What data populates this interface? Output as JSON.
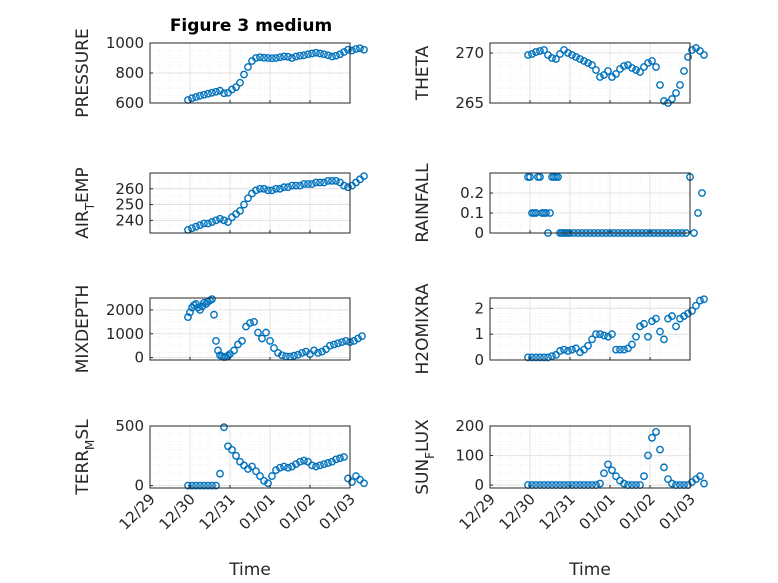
{
  "title": "Figure 3 medium",
  "xlabel": "Time",
  "x_ticks": [
    "12/29",
    "12/30",
    "12/31",
    "01/01",
    "01/02",
    "01/03"
  ],
  "chart_data": [
    {
      "type": "scatter",
      "ylabel_parts": [
        "PRESSURE"
      ],
      "ylim": [
        600,
        1000
      ],
      "y_ticks": [
        "600",
        "800",
        "1000"
      ],
      "y_tick_values": [
        600,
        800,
        1000
      ],
      "x": [
        0.95,
        1.05,
        1.15,
        1.25,
        1.35,
        1.45,
        1.55,
        1.65,
        1.75,
        1.85,
        1.95,
        2.05,
        2.15,
        2.25,
        2.35,
        2.45,
        2.55,
        2.65,
        2.75,
        2.85,
        2.95,
        3.05,
        3.15,
        3.25,
        3.35,
        3.45,
        3.55,
        3.65,
        3.75,
        3.85,
        3.95,
        4.05,
        4.15,
        4.25,
        4.35,
        4.45,
        4.55,
        4.65,
        4.75,
        4.85,
        4.95,
        5.05,
        5.15,
        5.25,
        5.35
      ],
      "y": [
        620,
        632,
        640,
        648,
        655,
        662,
        668,
        675,
        682,
        665,
        668,
        690,
        705,
        735,
        790,
        840,
        880,
        900,
        905,
        902,
        900,
        898,
        900,
        905,
        910,
        908,
        900,
        910,
        915,
        918,
        925,
        930,
        935,
        930,
        925,
        918,
        910,
        915,
        925,
        940,
        955,
        950,
        960,
        965,
        955
      ]
    },
    {
      "type": "scatter",
      "ylabel_parts": [
        "THETA"
      ],
      "ylim": [
        265,
        271
      ],
      "y_ticks": [
        "265",
        "270"
      ],
      "y_tick_values": [
        265,
        270
      ],
      "x": [
        0.95,
        1.05,
        1.15,
        1.25,
        1.35,
        1.45,
        1.55,
        1.65,
        1.75,
        1.85,
        1.95,
        2.05,
        2.15,
        2.25,
        2.35,
        2.45,
        2.55,
        2.65,
        2.75,
        2.85,
        2.95,
        3.05,
        3.15,
        3.25,
        3.35,
        3.45,
        3.55,
        3.65,
        3.75,
        3.85,
        3.95,
        4.05,
        4.15,
        4.25,
        4.35,
        4.45,
        4.55,
        4.65,
        4.75,
        4.85,
        4.95,
        5.05,
        5.15,
        5.25,
        5.35
      ],
      "y": [
        269.8,
        269.9,
        270.1,
        270.2,
        270.3,
        269.8,
        269.5,
        269.4,
        269.9,
        270.3,
        270.0,
        269.8,
        269.6,
        269.4,
        269.2,
        269.0,
        268.8,
        268.3,
        267.6,
        267.8,
        268.2,
        267.6,
        267.9,
        268.4,
        268.7,
        268.8,
        268.5,
        268.3,
        268.1,
        268.6,
        269.0,
        269.2,
        268.6,
        266.8,
        265.2,
        265.0,
        265.4,
        266.0,
        266.8,
        268.2,
        269.6,
        270.3,
        270.5,
        270.2,
        269.8
      ]
    },
    {
      "type": "scatter",
      "ylabel_parts": [
        "AIR",
        "T",
        "EMP"
      ],
      "ylim": [
        232,
        270
      ],
      "y_ticks": [
        "240",
        "250",
        "260"
      ],
      "y_tick_values": [
        240,
        250,
        260
      ],
      "x": [
        0.95,
        1.05,
        1.15,
        1.25,
        1.35,
        1.45,
        1.55,
        1.65,
        1.75,
        1.85,
        1.95,
        2.05,
        2.15,
        2.25,
        2.35,
        2.45,
        2.55,
        2.65,
        2.75,
        2.85,
        2.95,
        3.05,
        3.15,
        3.25,
        3.35,
        3.45,
        3.55,
        3.65,
        3.75,
        3.85,
        3.95,
        4.05,
        4.15,
        4.25,
        4.35,
        4.45,
        4.55,
        4.65,
        4.75,
        4.85,
        4.95,
        5.05,
        5.15,
        5.25,
        5.35
      ],
      "y": [
        234,
        235,
        236,
        237,
        238,
        238,
        239,
        240,
        241,
        240,
        239,
        242,
        244,
        246,
        250,
        254,
        257,
        259,
        260,
        260,
        259,
        259,
        260,
        260,
        261,
        261,
        262,
        262,
        262,
        263,
        263,
        263,
        264,
        264,
        264,
        265,
        265,
        265,
        264,
        262,
        261,
        262,
        264,
        266,
        268
      ]
    },
    {
      "type": "scatter",
      "ylabel_parts": [
        "RAINFALL"
      ],
      "ylim": [
        0,
        0.3
      ],
      "y_ticks": [
        "0",
        "0.1",
        "0.2"
      ],
      "y_tick_values": [
        0,
        0.1,
        0.2
      ],
      "x": [
        0.95,
        1.0,
        1.05,
        1.1,
        1.15,
        1.2,
        1.25,
        1.3,
        1.35,
        1.4,
        1.45,
        1.5,
        1.55,
        1.6,
        1.65,
        1.7,
        1.75,
        1.8,
        1.85,
        1.9,
        1.95,
        2.0,
        2.1,
        2.2,
        2.3,
        2.4,
        2.5,
        2.6,
        2.7,
        2.8,
        2.9,
        3.0,
        3.1,
        3.2,
        3.3,
        3.4,
        3.5,
        3.6,
        3.7,
        3.8,
        3.9,
        4.0,
        4.1,
        4.2,
        4.3,
        4.4,
        4.5,
        4.6,
        4.7,
        4.8,
        4.9,
        5.0,
        5.1,
        5.2,
        5.3
      ],
      "y": [
        0.28,
        0.28,
        0.1,
        0.1,
        0.1,
        0.28,
        0.28,
        0.1,
        0.1,
        0.1,
        0.0,
        0.1,
        0.28,
        0.28,
        0.28,
        0.28,
        0.0,
        0.0,
        0.0,
        0.0,
        0.0,
        0.0,
        0.0,
        0.0,
        0.0,
        0.0,
        0.0,
        0.0,
        0.0,
        0.0,
        0.0,
        0.0,
        0.0,
        0.0,
        0.0,
        0.0,
        0.0,
        0.0,
        0.0,
        0.0,
        0.0,
        0.0,
        0.0,
        0.0,
        0.0,
        0.0,
        0.0,
        0.0,
        0.0,
        0.0,
        0.0,
        0.28,
        0.0,
        0.1,
        0.2
      ]
    },
    {
      "type": "scatter",
      "ylabel_parts": [
        "MIXDEPTH"
      ],
      "ylim": [
        -100,
        2500
      ],
      "y_ticks": [
        "0",
        "1000",
        "2000"
      ],
      "y_tick_values": [
        0,
        1000,
        2000
      ],
      "x": [
        0.95,
        1.0,
        1.05,
        1.1,
        1.15,
        1.2,
        1.25,
        1.3,
        1.35,
        1.4,
        1.45,
        1.5,
        1.55,
        1.6,
        1.65,
        1.7,
        1.75,
        1.8,
        1.85,
        1.9,
        1.95,
        2.0,
        2.1,
        2.2,
        2.3,
        2.4,
        2.5,
        2.6,
        2.7,
        2.8,
        2.9,
        3.0,
        3.1,
        3.2,
        3.3,
        3.4,
        3.5,
        3.6,
        3.7,
        3.8,
        3.9,
        4.0,
        4.1,
        4.2,
        4.3,
        4.4,
        4.5,
        4.6,
        4.7,
        4.8,
        4.9,
        5.0,
        5.1,
        5.2,
        5.3
      ],
      "y": [
        1700,
        1900,
        2100,
        2200,
        2250,
        2100,
        2000,
        2150,
        2300,
        2250,
        2350,
        2400,
        2450,
        1800,
        700,
        300,
        100,
        50,
        20,
        30,
        80,
        150,
        300,
        550,
        700,
        1300,
        1450,
        1500,
        1050,
        800,
        1050,
        700,
        400,
        200,
        100,
        50,
        40,
        80,
        120,
        200,
        250,
        150,
        300,
        200,
        250,
        350,
        500,
        550,
        600,
        650,
        700,
        650,
        700,
        800,
        900
      ]
    },
    {
      "type": "scatter",
      "ylabel_parts": [
        "H2OMIXRA"
      ],
      "ylim": [
        0,
        2.4
      ],
      "y_ticks": [
        "0",
        "1",
        "2"
      ],
      "y_tick_values": [
        0,
        1,
        2
      ],
      "x": [
        0.95,
        1.05,
        1.15,
        1.25,
        1.35,
        1.45,
        1.55,
        1.65,
        1.75,
        1.85,
        1.95,
        2.05,
        2.15,
        2.25,
        2.35,
        2.45,
        2.55,
        2.65,
        2.75,
        2.85,
        2.95,
        3.05,
        3.15,
        3.25,
        3.35,
        3.45,
        3.55,
        3.65,
        3.75,
        3.85,
        3.95,
        4.05,
        4.15,
        4.25,
        4.35,
        4.45,
        4.55,
        4.65,
        4.75,
        4.85,
        4.95,
        5.05,
        5.15,
        5.25,
        5.35
      ],
      "y": [
        0.1,
        0.1,
        0.1,
        0.1,
        0.1,
        0.1,
        0.15,
        0.2,
        0.35,
        0.4,
        0.35,
        0.4,
        0.45,
        0.3,
        0.4,
        0.55,
        0.8,
        1.0,
        1.0,
        0.95,
        0.9,
        1.0,
        0.4,
        0.4,
        0.4,
        0.45,
        0.6,
        0.9,
        1.3,
        1.4,
        0.9,
        1.5,
        1.6,
        1.1,
        0.8,
        1.6,
        1.7,
        1.3,
        1.6,
        1.7,
        1.8,
        1.9,
        2.1,
        2.3,
        2.35
      ]
    },
    {
      "type": "scatter",
      "ylabel_parts": [
        "TERR",
        "M",
        "SL"
      ],
      "ylim": [
        -20,
        500
      ],
      "y_ticks": [
        "0",
        "500"
      ],
      "y_tick_values": [
        0,
        500
      ],
      "x": [
        0.95,
        1.05,
        1.15,
        1.25,
        1.35,
        1.45,
        1.55,
        1.65,
        1.75,
        1.85,
        1.95,
        2.05,
        2.15,
        2.25,
        2.35,
        2.45,
        2.55,
        2.65,
        2.75,
        2.85,
        2.95,
        3.05,
        3.15,
        3.25,
        3.35,
        3.45,
        3.55,
        3.65,
        3.75,
        3.85,
        3.95,
        4.05,
        4.15,
        4.25,
        4.35,
        4.45,
        4.55,
        4.65,
        4.75,
        4.85,
        4.95,
        5.05,
        5.15,
        5.25,
        5.35
      ],
      "y": [
        0,
        0,
        0,
        0,
        0,
        0,
        0,
        0,
        100,
        490,
        330,
        300,
        250,
        200,
        170,
        140,
        160,
        120,
        80,
        40,
        20,
        80,
        130,
        150,
        160,
        150,
        160,
        180,
        200,
        210,
        200,
        170,
        160,
        170,
        180,
        190,
        200,
        220,
        230,
        240,
        60,
        30,
        80,
        50,
        20
      ]
    },
    {
      "type": "scatter",
      "ylabel_parts": [
        "SUN",
        "F",
        "LUX"
      ],
      "ylim": [
        -10,
        200
      ],
      "y_ticks": [
        "0",
        "100",
        "200"
      ],
      "y_tick_values": [
        0,
        100,
        200
      ],
      "x": [
        0.95,
        1.05,
        1.15,
        1.25,
        1.35,
        1.45,
        1.55,
        1.65,
        1.75,
        1.85,
        1.95,
        2.05,
        2.15,
        2.25,
        2.35,
        2.45,
        2.55,
        2.65,
        2.75,
        2.85,
        2.95,
        3.05,
        3.15,
        3.25,
        3.35,
        3.45,
        3.55,
        3.65,
        3.75,
        3.85,
        3.95,
        4.05,
        4.15,
        4.25,
        4.35,
        4.45,
        4.55,
        4.65,
        4.75,
        4.85,
        4.95,
        5.05,
        5.15,
        5.25,
        5.35
      ],
      "y": [
        0,
        0,
        0,
        0,
        0,
        0,
        0,
        0,
        0,
        0,
        0,
        0,
        0,
        0,
        0,
        0,
        0,
        0,
        5,
        40,
        70,
        50,
        30,
        15,
        5,
        0,
        0,
        0,
        0,
        30,
        100,
        160,
        180,
        120,
        60,
        20,
        5,
        0,
        0,
        0,
        0,
        10,
        20,
        30,
        5
      ]
    }
  ]
}
